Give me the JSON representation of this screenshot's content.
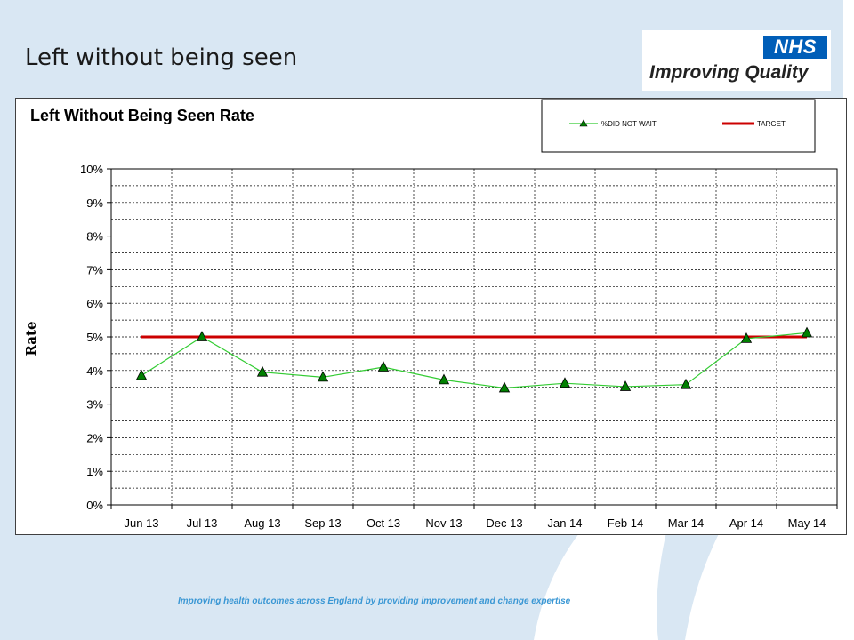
{
  "slide": {
    "title": "Left without being seen",
    "footer": "Improving health outcomes across England by providing improvement and change expertise"
  },
  "logo": {
    "badge": "NHS",
    "text": "Improving Quality",
    "badge_color": "#005eb8"
  },
  "colors": {
    "series_line": "#33cc33",
    "series_marker": "#008000",
    "target_line": "#cc0000",
    "background_swoosh": "#d6e6f2"
  },
  "chart_data": {
    "type": "line",
    "title": "Left Without Being Seen Rate",
    "xlabel": "",
    "ylabel": "Rate",
    "categories": [
      "Jun 13",
      "Jul 13",
      "Aug 13",
      "Sep 13",
      "Oct 13",
      "Nov 13",
      "Dec 13",
      "Jan 14",
      "Feb 14",
      "Mar 14",
      "Apr 14",
      "May 14"
    ],
    "series": [
      {
        "name": "%DID NOT WAIT",
        "values": [
          3.85,
          5.0,
          3.95,
          3.8,
          4.1,
          3.72,
          3.48,
          3.62,
          3.52,
          3.58,
          4.95,
          5.12
        ]
      },
      {
        "name": "TARGET",
        "values": [
          5,
          5,
          5,
          5,
          5,
          5,
          5,
          5,
          5,
          5,
          5,
          5
        ]
      }
    ],
    "ylim": [
      0,
      10
    ],
    "yticks": [
      "0%",
      "1%",
      "2%",
      "3%",
      "4%",
      "5%",
      "6%",
      "7%",
      "8%",
      "9%",
      "10%"
    ],
    "grid": true,
    "legend_position": "top-right"
  }
}
